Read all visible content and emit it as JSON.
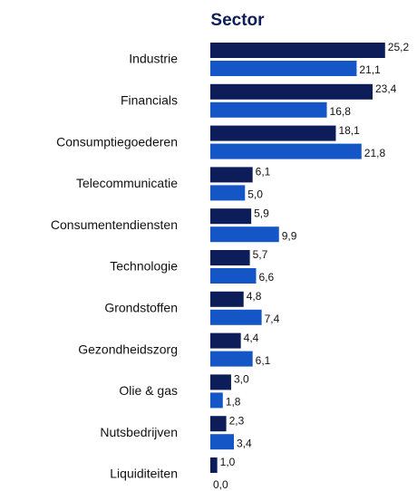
{
  "chart_data": {
    "type": "hbar",
    "title": "Sector",
    "categories": [
      "Industrie",
      "Financials",
      "Consumptiegoederen",
      "Telecommunicatie",
      "Consumentendiensten",
      "Technologie",
      "Grondstoffen",
      "Gezondheidszorg",
      "Olie & gas",
      "Nutsbedrijven",
      "Liquiditeiten"
    ],
    "series": [
      {
        "color": "#0c1d5a",
        "values": [
          25.2,
          23.4,
          18.1,
          6.1,
          5.9,
          5.7,
          4.8,
          4.4,
          3.0,
          2.3,
          1.0
        ],
        "value_labels": [
          "25,2",
          "23,4",
          "18,1",
          "6,1",
          "5,9",
          "5,7",
          "4,8",
          "4,4",
          "3,0",
          "2,3",
          "1,0"
        ]
      },
      {
        "color": "#1456c6",
        "values": [
          21.1,
          16.8,
          21.8,
          5.0,
          9.9,
          6.6,
          7.4,
          6.1,
          1.8,
          3.4,
          0.0
        ],
        "value_labels": [
          "21,1",
          "16,8",
          "21,8",
          "5,0",
          "9,9",
          "6,6",
          "7,4",
          "6,1",
          "1,8",
          "3,4",
          "0,0"
        ]
      }
    ]
  }
}
